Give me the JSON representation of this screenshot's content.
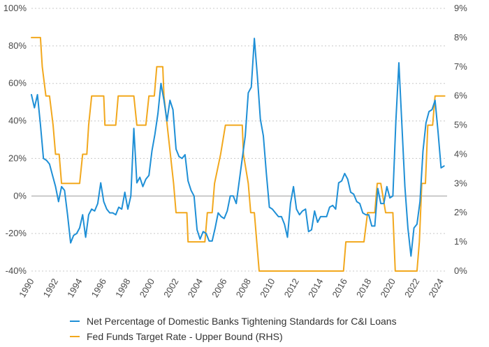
{
  "chart_data": {
    "type": "line",
    "title": "",
    "colors": {
      "banks": "#1e8fd6",
      "fed": "#f2a81d",
      "grid": "#c8c8c8",
      "zero": "#9a9a9a"
    },
    "y_left": {
      "range": [
        -40,
        100
      ],
      "ticks": [
        -40,
        -20,
        0,
        20,
        40,
        60,
        80,
        100
      ],
      "tick_labels": [
        "-40%",
        "-20%",
        "0%",
        "20%",
        "40%",
        "60%",
        "80%",
        "100%"
      ]
    },
    "y_right": {
      "range": [
        0,
        9
      ],
      "ticks": [
        0,
        1,
        2,
        3,
        4,
        5,
        6,
        7,
        8,
        9
      ],
      "tick_labels": [
        "0%",
        "1%",
        "2%",
        "3%",
        "4%",
        "5%",
        "6%",
        "7%",
        "8%",
        "9%"
      ]
    },
    "x_axis": {
      "range": [
        1990,
        2024.5
      ],
      "ticks": [
        1990,
        1992,
        1994,
        1996,
        1998,
        2000,
        2002,
        2004,
        2006,
        2008,
        2010,
        2012,
        2014,
        2016,
        2018,
        2020,
        2022,
        2024
      ],
      "tick_labels": [
        "1990",
        "1992",
        "1994",
        "1996",
        "1998",
        "2000",
        "2002",
        "2004",
        "2006",
        "2008",
        "2010",
        "2012",
        "2014",
        "2016",
        "2018",
        "2020",
        "2022",
        "2024"
      ]
    },
    "grid": "horizontal dashed",
    "legend_position": "bottom",
    "series": [
      {
        "name": "Net Percentage of Domestic Banks Tightening Standards for C&I Loans",
        "axis": "left",
        "points": [
          [
            1990.0,
            54
          ],
          [
            1990.25,
            47
          ],
          [
            1990.5,
            54
          ],
          [
            1990.75,
            38
          ],
          [
            1991.0,
            20
          ],
          [
            1991.25,
            19
          ],
          [
            1991.5,
            17
          ],
          [
            1991.75,
            11
          ],
          [
            1992.0,
            5
          ],
          [
            1992.25,
            -3
          ],
          [
            1992.5,
            5
          ],
          [
            1992.75,
            3
          ],
          [
            1993.0,
            -10
          ],
          [
            1993.25,
            -25
          ],
          [
            1993.5,
            -21
          ],
          [
            1993.75,
            -20
          ],
          [
            1994.0,
            -17
          ],
          [
            1994.25,
            -10
          ],
          [
            1994.5,
            -22
          ],
          [
            1994.75,
            -10
          ],
          [
            1995.0,
            -7
          ],
          [
            1995.25,
            -8
          ],
          [
            1995.5,
            -4
          ],
          [
            1995.75,
            7
          ],
          [
            1996.0,
            -3
          ],
          [
            1996.25,
            -7
          ],
          [
            1996.5,
            -9
          ],
          [
            1996.75,
            -9
          ],
          [
            1997.0,
            -10
          ],
          [
            1997.25,
            -6
          ],
          [
            1997.5,
            -7
          ],
          [
            1997.75,
            2
          ],
          [
            1998.0,
            -7
          ],
          [
            1998.25,
            0
          ],
          [
            1998.5,
            36
          ],
          [
            1998.75,
            7
          ],
          [
            1999.0,
            10
          ],
          [
            1999.25,
            5
          ],
          [
            1999.5,
            9
          ],
          [
            1999.75,
            11
          ],
          [
            2000.0,
            24
          ],
          [
            2000.25,
            33
          ],
          [
            2000.5,
            44
          ],
          [
            2000.75,
            60
          ],
          [
            2001.0,
            51
          ],
          [
            2001.25,
            40
          ],
          [
            2001.5,
            51
          ],
          [
            2001.75,
            46
          ],
          [
            2002.0,
            25
          ],
          [
            2002.25,
            21
          ],
          [
            2002.5,
            20
          ],
          [
            2002.75,
            22
          ],
          [
            2003.0,
            8
          ],
          [
            2003.25,
            3
          ],
          [
            2003.5,
            0
          ],
          [
            2003.75,
            -18
          ],
          [
            2004.0,
            -23
          ],
          [
            2004.25,
            -19
          ],
          [
            2004.5,
            -20
          ],
          [
            2004.75,
            -24
          ],
          [
            2005.0,
            -24
          ],
          [
            2005.25,
            -17
          ],
          [
            2005.5,
            -9
          ],
          [
            2005.75,
            -11
          ],
          [
            2006.0,
            -12
          ],
          [
            2006.25,
            -8
          ],
          [
            2006.5,
            0
          ],
          [
            2006.75,
            0
          ],
          [
            2007.0,
            -4
          ],
          [
            2007.25,
            8
          ],
          [
            2007.5,
            20
          ],
          [
            2007.75,
            32
          ],
          [
            2008.0,
            55
          ],
          [
            2008.25,
            58
          ],
          [
            2008.5,
            84
          ],
          [
            2008.75,
            64
          ],
          [
            2009.0,
            41
          ],
          [
            2009.25,
            32
          ],
          [
            2009.5,
            12
          ],
          [
            2009.75,
            -6
          ],
          [
            2010.0,
            -7
          ],
          [
            2010.25,
            -9
          ],
          [
            2010.5,
            -11
          ],
          [
            2010.75,
            -11
          ],
          [
            2011.0,
            -15
          ],
          [
            2011.25,
            -22
          ],
          [
            2011.5,
            -4
          ],
          [
            2011.75,
            5
          ],
          [
            2012.0,
            -7
          ],
          [
            2012.25,
            -10
          ],
          [
            2012.5,
            -8
          ],
          [
            2012.75,
            -7
          ],
          [
            2013.0,
            -19
          ],
          [
            2013.25,
            -18
          ],
          [
            2013.5,
            -8
          ],
          [
            2013.75,
            -14
          ],
          [
            2014.0,
            -11
          ],
          [
            2014.25,
            -11
          ],
          [
            2014.5,
            -11
          ],
          [
            2014.75,
            -6
          ],
          [
            2015.0,
            -5
          ],
          [
            2015.25,
            -7
          ],
          [
            2015.5,
            7
          ],
          [
            2015.75,
            8
          ],
          [
            2016.0,
            12
          ],
          [
            2016.25,
            9
          ],
          [
            2016.5,
            2
          ],
          [
            2016.75,
            1
          ],
          [
            2017.0,
            -3
          ],
          [
            2017.25,
            -4
          ],
          [
            2017.5,
            -9
          ],
          [
            2017.75,
            -10
          ],
          [
            2018.0,
            -10
          ],
          [
            2018.25,
            -16
          ],
          [
            2018.5,
            -16
          ],
          [
            2018.75,
            4
          ],
          [
            2019.0,
            -4
          ],
          [
            2019.25,
            -4
          ],
          [
            2019.5,
            5
          ],
          [
            2019.75,
            -1
          ],
          [
            2020.0,
            0
          ],
          [
            2020.25,
            40
          ],
          [
            2020.5,
            71
          ],
          [
            2020.75,
            38
          ],
          [
            2021.0,
            5
          ],
          [
            2021.25,
            -17
          ],
          [
            2021.5,
            -32
          ],
          [
            2021.75,
            -17
          ],
          [
            2022.0,
            -15
          ],
          [
            2022.25,
            -3
          ],
          [
            2022.5,
            24
          ],
          [
            2022.75,
            39
          ],
          [
            2023.0,
            45
          ],
          [
            2023.25,
            46
          ],
          [
            2023.5,
            51
          ],
          [
            2023.75,
            34
          ],
          [
            2024.0,
            15
          ],
          [
            2024.25,
            16
          ]
        ]
      },
      {
        "name": "Fed Funds Target Rate - Upper Bound (RHS)",
        "axis": "right",
        "points": [
          [
            1990.0,
            8.0
          ],
          [
            1990.75,
            8.0
          ],
          [
            1990.9,
            7.0
          ],
          [
            1991.2,
            6.0
          ],
          [
            1991.5,
            6.0
          ],
          [
            1991.8,
            5.0
          ],
          [
            1992.0,
            4.0
          ],
          [
            1992.3,
            4.0
          ],
          [
            1992.5,
            3.0
          ],
          [
            1993.0,
            3.0
          ],
          [
            1994.0,
            3.0
          ],
          [
            1994.25,
            4.0
          ],
          [
            1994.6,
            4.0
          ],
          [
            1994.75,
            5.0
          ],
          [
            1995.0,
            6.0
          ],
          [
            1996.0,
            6.0
          ],
          [
            1996.1,
            5.0
          ],
          [
            1997.0,
            5.0
          ],
          [
            1997.2,
            6.0
          ],
          [
            1998.5,
            6.0
          ],
          [
            1998.75,
            5.0
          ],
          [
            1999.5,
            5.0
          ],
          [
            1999.75,
            6.0
          ],
          [
            2000.2,
            6.0
          ],
          [
            2000.4,
            7.0
          ],
          [
            2000.9,
            7.0
          ],
          [
            2001.0,
            6.0
          ],
          [
            2001.8,
            3.0
          ],
          [
            2002.0,
            2.0
          ],
          [
            2002.9,
            2.0
          ],
          [
            2003.0,
            1.0
          ],
          [
            2004.4,
            1.0
          ],
          [
            2004.6,
            2.0
          ],
          [
            2005.0,
            2.0
          ],
          [
            2005.2,
            3.0
          ],
          [
            2005.7,
            4.0
          ],
          [
            2006.1,
            5.0
          ],
          [
            2006.6,
            5.0
          ],
          [
            2007.5,
            5.0
          ],
          [
            2007.6,
            4.0
          ],
          [
            2008.0,
            3.0
          ],
          [
            2008.2,
            2.0
          ],
          [
            2008.5,
            2.0
          ],
          [
            2008.9,
            0.0
          ],
          [
            2015.9,
            0.0
          ],
          [
            2016.1,
            1.0
          ],
          [
            2017.6,
            1.0
          ],
          [
            2017.9,
            2.0
          ],
          [
            2018.5,
            2.0
          ],
          [
            2018.7,
            3.0
          ],
          [
            2019.0,
            3.0
          ],
          [
            2019.4,
            2.0
          ],
          [
            2020.0,
            2.0
          ],
          [
            2020.2,
            0.0
          ],
          [
            2022.0,
            0.0
          ],
          [
            2022.2,
            1.0
          ],
          [
            2022.4,
            3.0
          ],
          [
            2022.7,
            3.0
          ],
          [
            2022.9,
            5.0
          ],
          [
            2023.3,
            5.0
          ],
          [
            2023.5,
            6.0
          ],
          [
            2024.3,
            6.0
          ]
        ]
      }
    ]
  }
}
